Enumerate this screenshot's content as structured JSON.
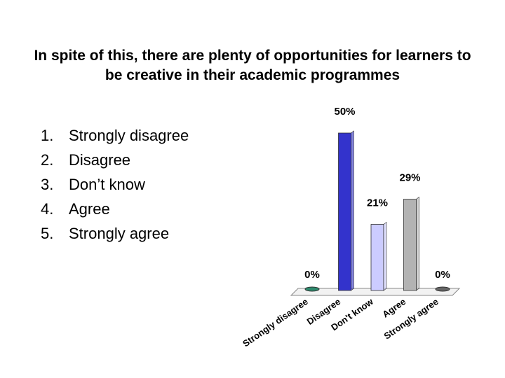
{
  "chart_data": {
    "type": "bar",
    "title": "In spite of this, there are plenty of opportunities for learners to be creative in their academic programmes",
    "options": [
      {
        "marker": "1.",
        "text": "Strongly disagree"
      },
      {
        "marker": "2.",
        "text": "Disagree"
      },
      {
        "marker": "3.",
        "text": "Don’t know"
      },
      {
        "marker": "4.",
        "text": "Agree"
      },
      {
        "marker": "5.",
        "text": "Strongly agree"
      }
    ],
    "categories": [
      "Strongly disagree",
      "Disagree",
      "Don't know",
      "Agree",
      "Strongly agree"
    ],
    "values": [
      0,
      50,
      21,
      29,
      0
    ],
    "value_labels": [
      "0%",
      "50%",
      "21%",
      "29%",
      "0%"
    ],
    "colors": [
      "#2e8b6e",
      "#3333cc",
      "#ccccff",
      "#b3b3b3",
      "#666666"
    ]
  }
}
